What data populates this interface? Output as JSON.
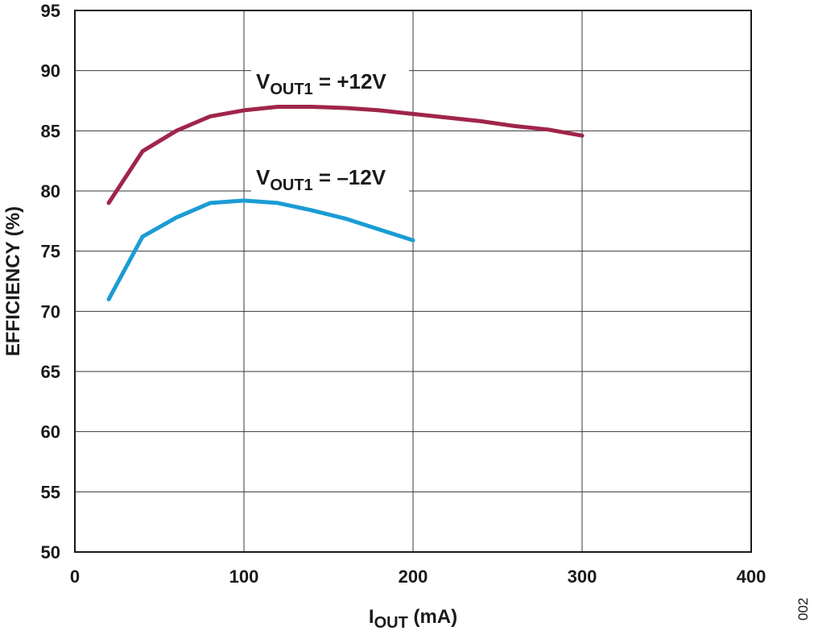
{
  "chart_data": {
    "type": "line",
    "xlabel": {
      "main": "I",
      "sub": "OUT",
      "rest": " (mA)"
    },
    "ylabel": "EFFICIENCY (%)",
    "xlim": [
      0,
      400
    ],
    "ylim": [
      50,
      95
    ],
    "xticks": [
      0,
      100,
      200,
      300,
      400
    ],
    "yticks": [
      50,
      55,
      60,
      65,
      70,
      75,
      80,
      85,
      90,
      95
    ],
    "grid": true,
    "series": [
      {
        "name": "VOUT1 = +12V",
        "label": {
          "main": "V",
          "sub": "OUT1",
          "rest": " = +12V"
        },
        "color": "#A0254A",
        "x": [
          20,
          40,
          60,
          80,
          100,
          120,
          140,
          160,
          180,
          200,
          220,
          240,
          260,
          280,
          300
        ],
        "y": [
          79.0,
          83.3,
          85.0,
          86.2,
          86.7,
          87.0,
          87.0,
          86.9,
          86.7,
          86.4,
          86.1,
          85.8,
          85.4,
          85.1,
          84.6
        ]
      },
      {
        "name": "VOUT1 = −12V",
        "label": {
          "main": "V",
          "sub": "OUT1",
          "rest": " = –12V"
        },
        "color": "#1B9CD4",
        "x": [
          20,
          40,
          60,
          80,
          100,
          120,
          140,
          160,
          180,
          200
        ],
        "y": [
          71.0,
          76.2,
          77.8,
          79.0,
          79.2,
          79.0,
          78.4,
          77.7,
          76.8,
          75.9
        ]
      }
    ]
  },
  "figure_code": "002"
}
